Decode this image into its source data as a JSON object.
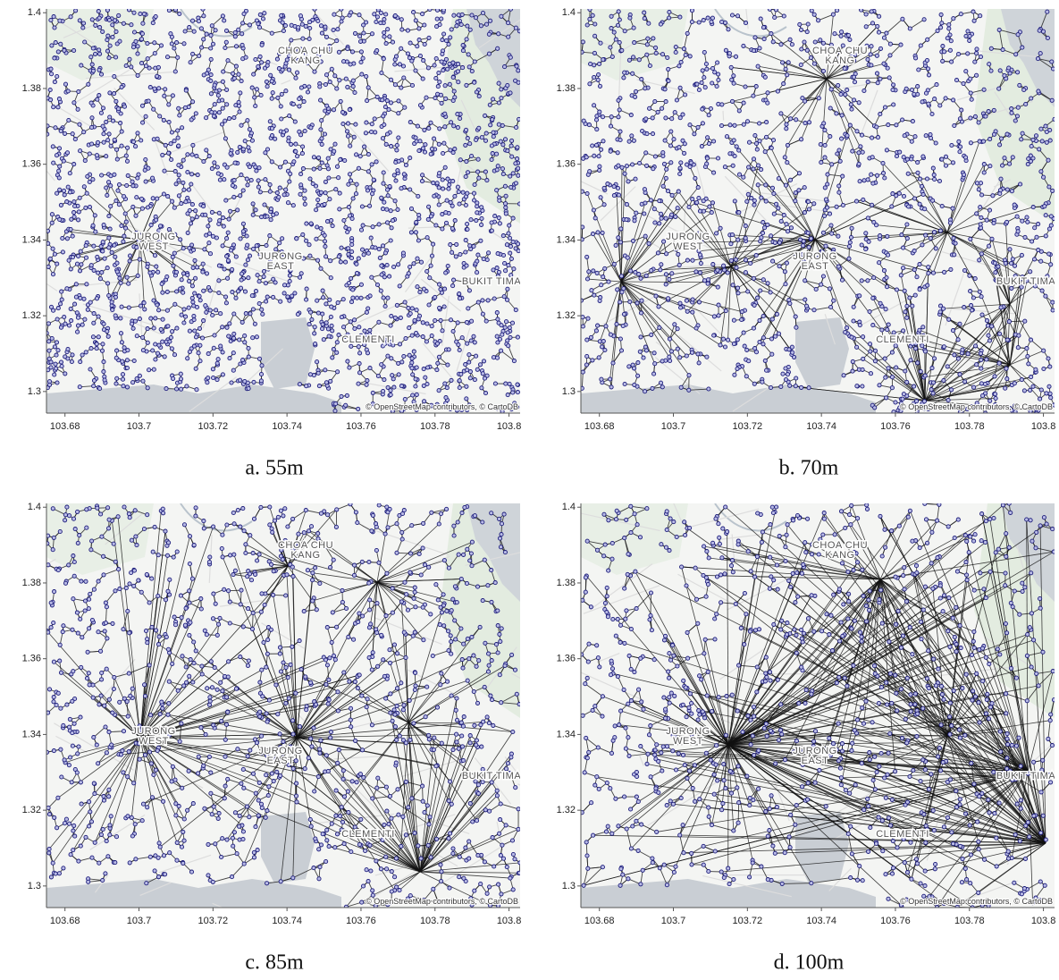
{
  "panels": [
    {
      "caption": "a. 55m"
    },
    {
      "caption": "b. 70m"
    },
    {
      "caption": "c. 85m"
    },
    {
      "caption": "d. 100m"
    }
  ],
  "xlim": [
    103.675,
    103.803
  ],
  "ylim": [
    1.2943,
    1.401
  ],
  "xticks": [
    103.68,
    103.7,
    103.72,
    103.74,
    103.76,
    103.78,
    103.8
  ],
  "yticks": [
    1.3,
    1.32,
    1.34,
    1.36,
    1.38,
    1.4
  ],
  "places": {
    "choa_chu": "CHOA CHU",
    "kang": "KANG",
    "jurong": "JURONG",
    "west": "WEST",
    "east": "EAST",
    "bukit_timah": "BUKIT TIMA",
    "clementi": "CLEMENTI"
  },
  "attribution": "© OpenStreetMap contributors, © CartoDB"
}
